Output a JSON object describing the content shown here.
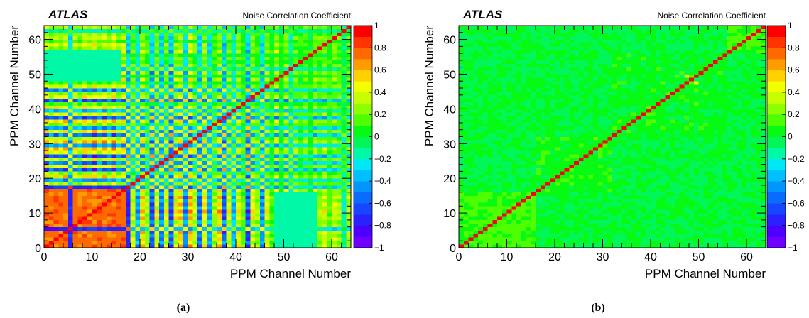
{
  "chart_data": [
    {
      "type": "heatmap",
      "panel_caption": "(a)",
      "experiment_label": "ATLAS",
      "z_title": "Noise Correlation Coefficient",
      "xlabel": "PPM Channel Number",
      "ylabel": "PPM Channel Number",
      "xlim": [
        0,
        64
      ],
      "ylim": [
        0,
        64
      ],
      "zlim": [
        -1,
        1
      ],
      "x_ticks": [
        "0",
        "10",
        "20",
        "30",
        "40",
        "50",
        "60"
      ],
      "y_ticks": [
        "0",
        "10",
        "20",
        "30",
        "40",
        "50",
        "60"
      ],
      "z_ticks": [
        "1",
        "0.8",
        "0.6",
        "0.4",
        "0.2",
        "0",
        "−0.2",
        "−0.4",
        "−0.6",
        "−0.8",
        "−1"
      ],
      "diagonal_value": 1.0,
      "channel_count": 64,
      "strong_block_channels": [
        0,
        17
      ],
      "strong_block_value": 0.75,
      "quiet_blocks": [
        {
          "channels": [
            48,
            55
          ],
          "range": [
            0,
            15
          ],
          "value": -0.15
        },
        {
          "channels": [
            0,
            15
          ],
          "range": [
            48,
            56
          ],
          "value": -0.15
        }
      ],
      "channel_pattern": [
        0.85,
        0.55,
        0.75,
        0.6,
        0.8,
        -0.55,
        0.7,
        0.5,
        0.8,
        0.65,
        0.9,
        0.6,
        0.8,
        0.55,
        0.85,
        0.5,
        0.7,
        -0.65,
        0.4,
        -0.5,
        0.6,
        0.3,
        -0.7,
        0.5,
        -0.6,
        0.45,
        -0.75,
        0.5,
        0.65,
        -0.55,
        0.7,
        0.4,
        -0.65,
        0.55,
        -0.5,
        0.3,
        0.6,
        -0.7,
        0.45,
        -0.4,
        0.5,
        0.2,
        -0.75,
        0.5,
        0.3,
        -0.55,
        0.45,
        0.15,
        0.6,
        0.1,
        0.55,
        -0.3,
        0.4,
        0.2,
        0.35,
        0.1,
        0.5,
        0.3,
        0.45,
        0.2,
        0.4,
        0.3,
        -0.2,
        0.35
      ]
    },
    {
      "type": "heatmap",
      "panel_caption": "(b)",
      "experiment_label": "ATLAS",
      "z_title": "Noise Correlation Coefficient",
      "xlabel": "PPM Channel Number",
      "ylabel": "PPM Channel Number",
      "xlim": [
        0,
        64
      ],
      "ylim": [
        0,
        64
      ],
      "zlim": [
        -1,
        1
      ],
      "x_ticks": [
        "0",
        "10",
        "20",
        "30",
        "40",
        "50",
        "60"
      ],
      "y_ticks": [
        "0",
        "10",
        "20",
        "30",
        "40",
        "50",
        "60"
      ],
      "z_ticks": [
        "1",
        "0.8",
        "0.6",
        "0.4",
        "0.2",
        "0",
        "−0.2",
        "−0.4",
        "−0.6",
        "−0.8",
        "−1"
      ],
      "diagonal_value": 1.0,
      "channel_count": 64,
      "blocks": [
        {
          "channels": [
            0,
            15
          ],
          "value": 0.12
        },
        {
          "channels": [
            16,
            31
          ],
          "value": 0.05
        },
        {
          "channels": [
            32,
            55
          ],
          "value": 0.04
        },
        {
          "channels": [
            56,
            63
          ],
          "value": 0.1
        }
      ],
      "off_block_value": 0.0,
      "hot_points": [
        {
          "x": 47,
          "y": 49,
          "value": 0.4
        },
        {
          "x": 49,
          "y": 47,
          "value": 0.4
        }
      ]
    }
  ]
}
